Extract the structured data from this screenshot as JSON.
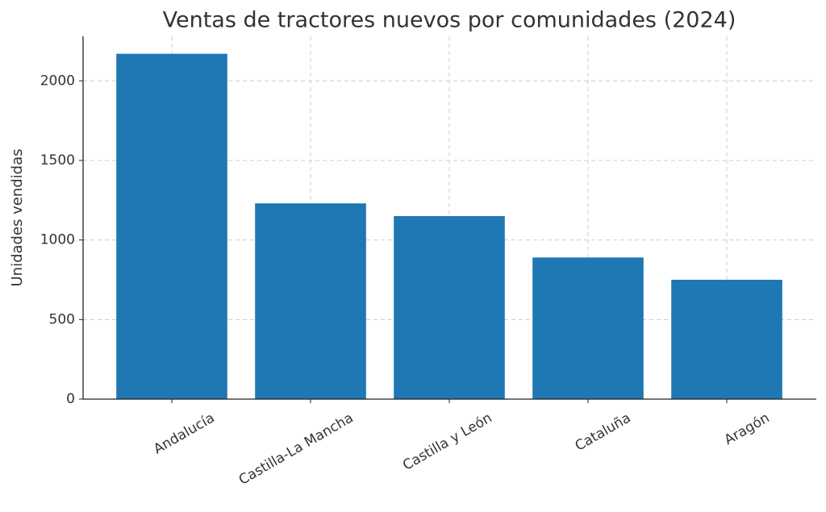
{
  "chart_data": {
    "type": "bar",
    "title": "Ventas de tractores nuevos por comunidades (2024)",
    "y_label": "Unidades vendidas",
    "categories": [
      "Andalucía",
      "Castilla-La Mancha",
      "Castilla y León",
      "Cataluña",
      "Aragón"
    ],
    "values": [
      2170,
      1230,
      1150,
      890,
      750
    ],
    "color": "#1f77b4",
    "ylim": [
      0,
      2280
    ],
    "yticks": [
      0,
      500,
      1000,
      1500,
      2000
    ],
    "grid": true
  }
}
